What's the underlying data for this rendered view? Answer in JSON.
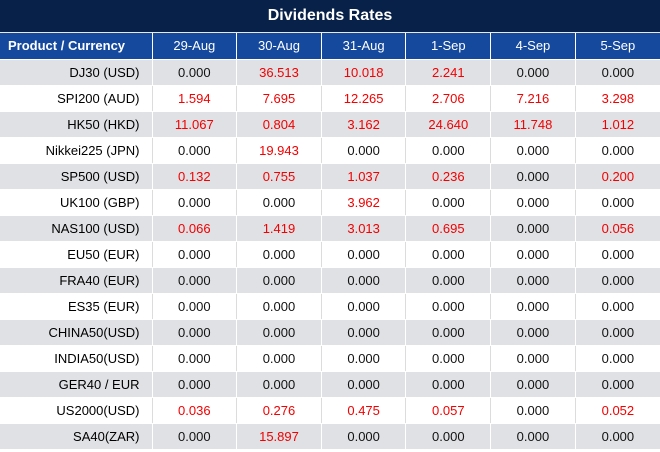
{
  "title": "Dividends Rates",
  "colors": {
    "title_bar_bg": "#082148",
    "header_bg": "#15499d",
    "alt_row_bg": "#dfe1e4",
    "row_bg": "#ffffff",
    "zero_value_text": "#121212",
    "nonzero_value_text": "#f40000",
    "header_text": "#ffffff"
  },
  "chart_data": {
    "type": "table",
    "title": "Dividends Rates",
    "columns": [
      "Product / Currency",
      "29-Aug",
      "30-Aug",
      "31-Aug",
      "1-Sep",
      "4-Sep",
      "5-Sep"
    ],
    "rows": [
      {
        "product": "DJ30 (USD)",
        "values": [
          "0.000",
          "36.513",
          "10.018",
          "2.241",
          "0.000",
          "0.000"
        ]
      },
      {
        "product": "SPI200 (AUD)",
        "values": [
          "1.594",
          "7.695",
          "12.265",
          "2.706",
          "7.216",
          "3.298"
        ]
      },
      {
        "product": "HK50 (HKD)",
        "values": [
          "11.067",
          "0.804",
          "3.162",
          "24.640",
          "11.748",
          "1.012"
        ]
      },
      {
        "product": "Nikkei225 (JPN)",
        "values": [
          "0.000",
          "19.943",
          "0.000",
          "0.000",
          "0.000",
          "0.000"
        ]
      },
      {
        "product": "SP500 (USD)",
        "values": [
          "0.132",
          "0.755",
          "1.037",
          "0.236",
          "0.000",
          "0.200"
        ]
      },
      {
        "product": "UK100 (GBP)",
        "values": [
          "0.000",
          "0.000",
          "3.962",
          "0.000",
          "0.000",
          "0.000"
        ]
      },
      {
        "product": "NAS100 (USD)",
        "values": [
          "0.066",
          "1.419",
          "3.013",
          "0.695",
          "0.000",
          "0.056"
        ]
      },
      {
        "product": "EU50 (EUR)",
        "values": [
          "0.000",
          "0.000",
          "0.000",
          "0.000",
          "0.000",
          "0.000"
        ]
      },
      {
        "product": "FRA40 (EUR)",
        "values": [
          "0.000",
          "0.000",
          "0.000",
          "0.000",
          "0.000",
          "0.000"
        ]
      },
      {
        "product": "ES35 (EUR)",
        "values": [
          "0.000",
          "0.000",
          "0.000",
          "0.000",
          "0.000",
          "0.000"
        ]
      },
      {
        "product": "CHINA50(USD)",
        "values": [
          "0.000",
          "0.000",
          "0.000",
          "0.000",
          "0.000",
          "0.000"
        ]
      },
      {
        "product": "INDIA50(USD)",
        "values": [
          "0.000",
          "0.000",
          "0.000",
          "0.000",
          "0.000",
          "0.000"
        ]
      },
      {
        "product": "GER40 / EUR",
        "values": [
          "0.000",
          "0.000",
          "0.000",
          "0.000",
          "0.000",
          "0.000"
        ]
      },
      {
        "product": "US2000(USD)",
        "values": [
          "0.036",
          "0.276",
          "0.475",
          "0.057",
          "0.000",
          "0.052"
        ]
      },
      {
        "product": "SA40(ZAR)",
        "values": [
          "0.000",
          "15.897",
          "0.000",
          "0.000",
          "0.000",
          "0.000"
        ]
      }
    ]
  }
}
